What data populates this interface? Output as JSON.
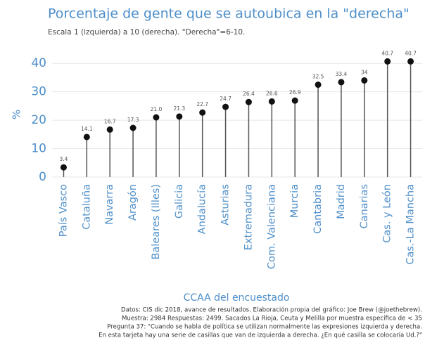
{
  "chart_data": {
    "type": "lollipop",
    "title": "Porcentaje de gente que se autoubica en la \"derecha\"",
    "subtitle": "Escala 1 (izquierda) a 10 (derecha). \"Derecha\"=6-10.",
    "x_label": "CCAA del encuestado",
    "y_label": "%",
    "categories": [
      "País Vasco",
      "Cataluña",
      "Navarra",
      "Aragón",
      "Baleares (Illes)",
      "Galicia",
      "Andalucía",
      "Asturias",
      "Extremadura",
      "Com. Valenciana",
      "Murcia",
      "Cantabria",
      "Madrid",
      "Canarias",
      "Cas. y León",
      "Cas.-La Mancha"
    ],
    "values": [
      3.4,
      14.1,
      16.7,
      17.3,
      21.0,
      21.3,
      22.7,
      24.7,
      26.4,
      26.6,
      26.9,
      32.5,
      33.4,
      34,
      40.7,
      40.7
    ],
    "value_labels": [
      "3.4",
      "14.1",
      "16.7",
      "17.3",
      "21.0",
      "21.3",
      "22.7",
      "24.7",
      "26.4",
      "26.6",
      "26.9",
      "32.5",
      "33.4",
      "34",
      "40.7",
      "40.7"
    ],
    "color": "#111111",
    "ylim": [
      -1,
      45
    ],
    "yticks": [
      0,
      10,
      20,
      30,
      40
    ],
    "grid": true,
    "caption": [
      "Datos: CIS dic 2018, avance de resultados. Elaboración propia del gráfico: Joe Brew (@joethebrew).",
      "Muestra: 2984 Respuestas: 2499. Sacados La Rioja, Ceuta y Melilla por muestra específica de < 35",
      "Pregunta 37: \"Cuando se habla de política se utilizan normalmente las expresiones izquierda y derecha.",
      "En esta tarjeta hay una serie de casillas que van de izquierda a derecha. ¿En qué casilla se colocaría Ud.?\""
    ]
  }
}
